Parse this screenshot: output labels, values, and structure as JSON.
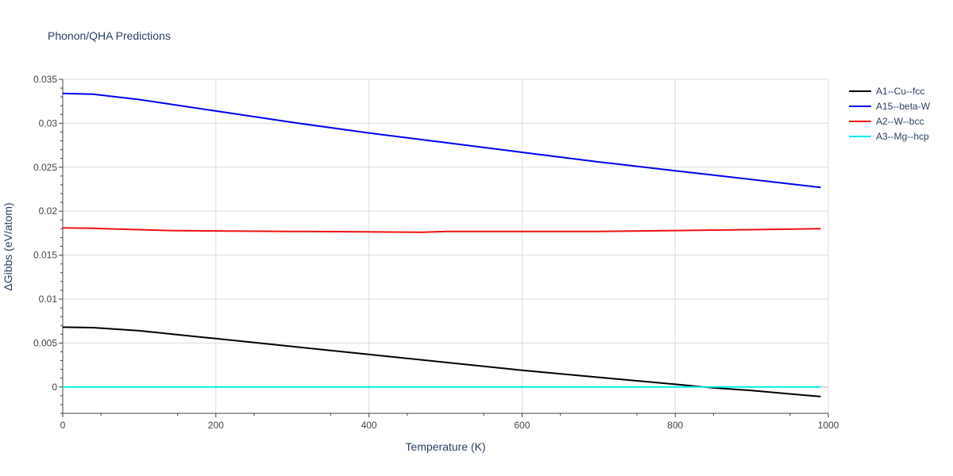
{
  "chart_data": {
    "type": "line",
    "title": "Phonon/QHA Predictions",
    "xlabel": "Temperature (K)",
    "ylabel": "ΔGibbs (eV/atom)",
    "xlim": [
      0,
      1000
    ],
    "ylim": [
      -0.003,
      0.035
    ],
    "x_ticks": [
      0,
      200,
      400,
      600,
      800,
      1000
    ],
    "x_tick_labels": [
      "0",
      "200",
      "400",
      "600",
      "800",
      "1000"
    ],
    "y_ticks": [
      0,
      0.005,
      0.01,
      0.015,
      0.02,
      0.025,
      0.03,
      0.035
    ],
    "y_tick_labels": [
      "0",
      "0.005",
      "0.01",
      "0.015",
      "0.02",
      "0.025",
      "0.03",
      "0.035"
    ],
    "legend_position": "top-right",
    "series": [
      {
        "name": "A1--Cu--fcc",
        "color": "#000000",
        "x": [
          0,
          40,
          100,
          200,
          300,
          400,
          500,
          600,
          700,
          800,
          850,
          900,
          990
        ],
        "y": [
          0.0068,
          0.00675,
          0.0064,
          0.0055,
          0.0046,
          0.0037,
          0.0028,
          0.0019,
          0.0011,
          0.0003,
          -0.0001,
          -0.0004,
          -0.0011
        ]
      },
      {
        "name": "A15--beta-W",
        "color": "#0000ee",
        "x": [
          0,
          40,
          100,
          200,
          300,
          400,
          500,
          600,
          700,
          800,
          900,
          990
        ],
        "y": [
          0.0334,
          0.0333,
          0.0327,
          0.0314,
          0.0301,
          0.0289,
          0.0278,
          0.0267,
          0.0256,
          0.0246,
          0.0236,
          0.0227
        ]
      },
      {
        "name": "A2--W--bcc",
        "color": "#ee1111",
        "x": [
          0,
          40,
          100,
          140,
          200,
          300,
          400,
          470,
          500,
          600,
          700,
          800,
          900,
          990
        ],
        "y": [
          0.0181,
          0.01805,
          0.0179,
          0.0178,
          0.01775,
          0.0177,
          0.01765,
          0.0176,
          0.0177,
          0.0177,
          0.0177,
          0.0178,
          0.0179,
          0.018
        ]
      },
      {
        "name": "A3--Mg--hcp",
        "color": "#00eeee",
        "x": [
          0,
          990
        ],
        "y": [
          0,
          0
        ]
      }
    ]
  }
}
